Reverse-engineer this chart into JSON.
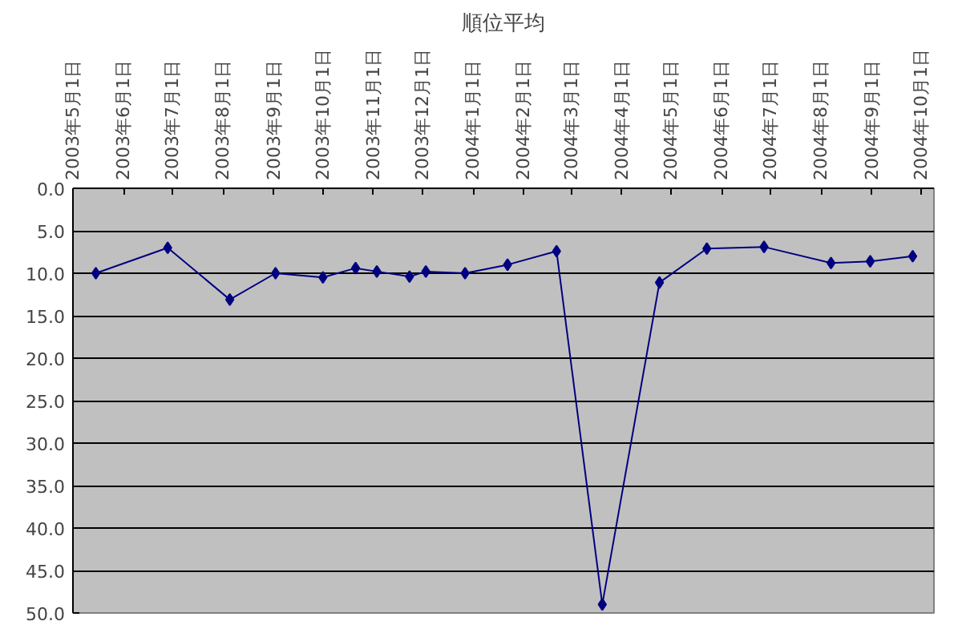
{
  "chart_data": {
    "type": "line",
    "title": "順位平均",
    "x": [
      "2003-05-15",
      "2003-06-28",
      "2003-08-05",
      "2003-09-02",
      "2003-10-01",
      "2003-10-21",
      "2003-11-03",
      "2003-11-23",
      "2003-12-03",
      "2003-12-27",
      "2004-01-22",
      "2004-02-21",
      "2004-03-20",
      "2004-04-24",
      "2004-05-23",
      "2004-06-27",
      "2004-08-07",
      "2004-08-31",
      "2004-09-26"
    ],
    "series": [
      {
        "color": "#000080",
        "values": [
          10.0,
          7.0,
          13.1,
          10.0,
          10.5,
          9.4,
          9.8,
          10.4,
          9.8,
          10.0,
          9.0,
          7.4,
          49.0,
          11.1,
          7.1,
          6.9,
          8.8,
          8.6,
          8.0
        ]
      }
    ],
    "xlim": [
      "2003-05-01",
      "2004-10-09"
    ],
    "xticks": [
      {
        "value": "2003-05-01",
        "label": "2003年5月1日"
      },
      {
        "value": "2003-06-01",
        "label": "2003年6月1日"
      },
      {
        "value": "2003-07-01",
        "label": "2003年7月1日"
      },
      {
        "value": "2003-08-01",
        "label": "2003年8月1日"
      },
      {
        "value": "2003-09-01",
        "label": "2003年9月1日"
      },
      {
        "value": "2003-10-01",
        "label": "2003年10月1日"
      },
      {
        "value": "2003-11-01",
        "label": "2003年11月1日"
      },
      {
        "value": "2003-12-01",
        "label": "2003年12月1日"
      },
      {
        "value": "2004-01-01",
        "label": "2004年1月1日"
      },
      {
        "value": "2004-02-01",
        "label": "2004年2月1日"
      },
      {
        "value": "2004-03-01",
        "label": "2004年3月1日"
      },
      {
        "value": "2004-04-01",
        "label": "2004年4月1日"
      },
      {
        "value": "2004-05-01",
        "label": "2004年5月1日"
      },
      {
        "value": "2004-06-01",
        "label": "2004年6月1日"
      },
      {
        "value": "2004-07-01",
        "label": "2004年7月1日"
      },
      {
        "value": "2004-08-01",
        "label": "2004年8月1日"
      },
      {
        "value": "2004-09-01",
        "label": "2004年9月1日"
      },
      {
        "value": "2004-10-01",
        "label": "2004年10月1日"
      }
    ],
    "ylim": [
      50,
      0
    ],
    "yticks": [
      {
        "value": 0,
        "label": "0.0"
      },
      {
        "value": 5,
        "label": "5.0"
      },
      {
        "value": 10,
        "label": "10.0"
      },
      {
        "value": 15,
        "label": "15.0"
      },
      {
        "value": 20,
        "label": "20.0"
      },
      {
        "value": 25,
        "label": "25.0"
      },
      {
        "value": 30,
        "label": "30.0"
      },
      {
        "value": 35,
        "label": "35.0"
      },
      {
        "value": 40,
        "label": "40.0"
      },
      {
        "value": 45,
        "label": "45.0"
      },
      {
        "value": 50,
        "label": "50.0"
      }
    ],
    "grid": "y",
    "marker": "diamond",
    "line_style": "solid"
  }
}
